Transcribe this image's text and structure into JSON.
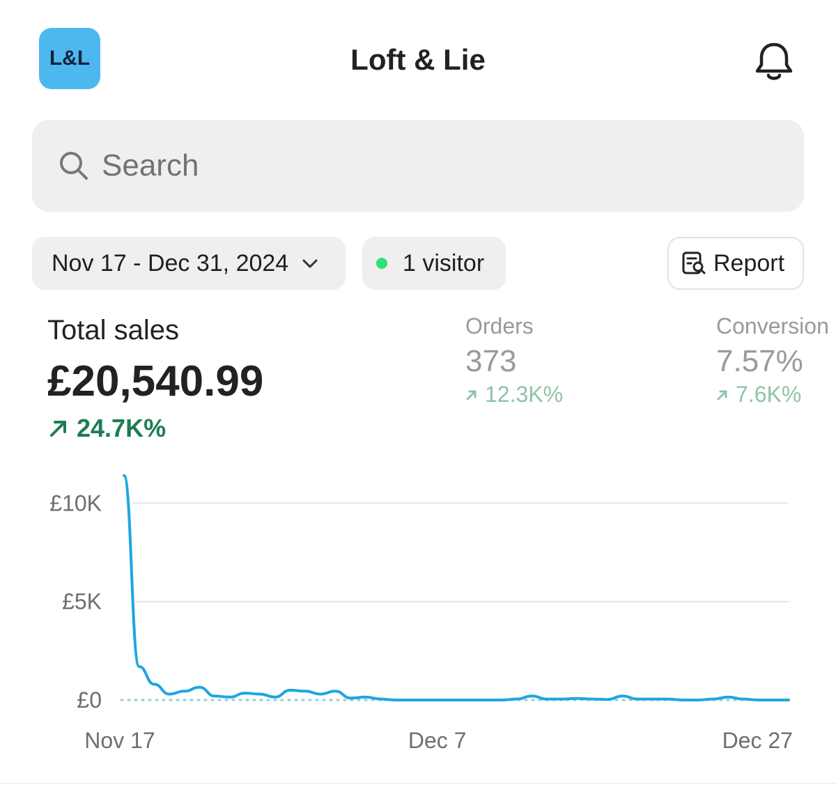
{
  "header": {
    "logo_text": "L&L",
    "logo_color": "#4db8f0",
    "title": "Loft & Lie",
    "notification_icon": "bell-icon"
  },
  "search": {
    "placeholder": "Search",
    "icon": "search-icon"
  },
  "filters": {
    "date_range": "Nov 17 - Dec 31, 2024",
    "visitors": "1 visitor",
    "visitor_dot_color": "#2ee07a",
    "report_label": "Report"
  },
  "metrics": {
    "total_sales": {
      "label": "Total sales",
      "value": "£20,540.99",
      "change": "24.7K%",
      "change_color": "#1e7c53"
    },
    "orders": {
      "label": "Orders",
      "value": "373",
      "change": "12.3K%"
    },
    "conversion": {
      "label": "Conversion",
      "value": "7.57%",
      "change": "7.6K%"
    }
  },
  "chart_data": {
    "type": "line",
    "x_tick_labels": [
      "Nov 17",
      "Dec 7",
      "Dec 27"
    ],
    "y_tick_labels": [
      "£0",
      "£5K",
      "£10K"
    ],
    "y_ticks": [
      0,
      5000,
      10000
    ],
    "ylim": [
      0,
      11500
    ],
    "x_start": "2024-11-17",
    "x_end": "2024-12-31",
    "line_color": "#1ea6e0",
    "grid": true,
    "series": [
      {
        "x": [
          "2024-11-17",
          "2024-11-18",
          "2024-11-19",
          "2024-11-20",
          "2024-11-21",
          "2024-11-22",
          "2024-11-23",
          "2024-11-24",
          "2024-11-25",
          "2024-11-26",
          "2024-11-27",
          "2024-11-28",
          "2024-11-29",
          "2024-11-30",
          "2024-12-01",
          "2024-12-02",
          "2024-12-03",
          "2024-12-04",
          "2024-12-05",
          "2024-12-06",
          "2024-12-07",
          "2024-12-08",
          "2024-12-09",
          "2024-12-10",
          "2024-12-11",
          "2024-12-12",
          "2024-12-13",
          "2024-12-14",
          "2024-12-15",
          "2024-12-16",
          "2024-12-17",
          "2024-12-18",
          "2024-12-19",
          "2024-12-20",
          "2024-12-21",
          "2024-12-22",
          "2024-12-23",
          "2024-12-24",
          "2024-12-25",
          "2024-12-26",
          "2024-12-27",
          "2024-12-28",
          "2024-12-29",
          "2024-12-30",
          "2024-12-31"
        ],
        "values": [
          11400,
          1700,
          800,
          300,
          450,
          650,
          200,
          150,
          350,
          300,
          150,
          500,
          450,
          300,
          450,
          100,
          150,
          50,
          0,
          0,
          0,
          0,
          0,
          0,
          0,
          0,
          50,
          200,
          50,
          50,
          80,
          50,
          30,
          200,
          50,
          50,
          50,
          0,
          0,
          50,
          150,
          50,
          0,
          0,
          0
        ]
      }
    ]
  }
}
